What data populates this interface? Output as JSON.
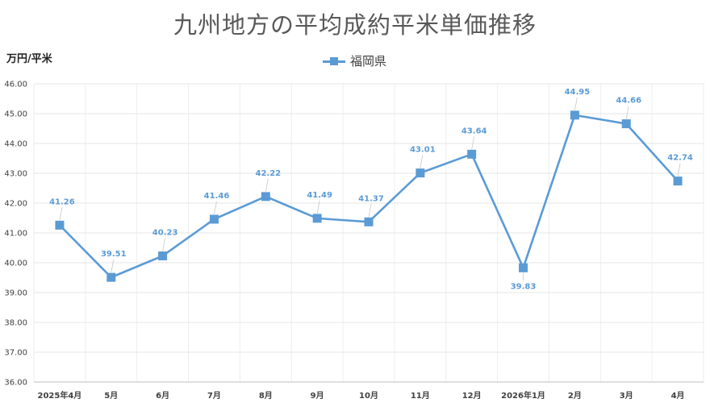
{
  "chart_data": {
    "type": "line",
    "title": "九州地方の平均成約平米単価推移",
    "ylabel": "万円/平米",
    "xlabel": "",
    "categories": [
      "2025年4月",
      "5月",
      "6月",
      "7月",
      "8月",
      "9月",
      "10月",
      "11月",
      "12月",
      "2026年1月",
      "2月",
      "3月",
      "4月"
    ],
    "series": [
      {
        "name": "福岡県",
        "values": [
          41.26,
          39.51,
          40.23,
          41.46,
          42.22,
          41.49,
          41.37,
          43.01,
          43.64,
          39.83,
          44.95,
          44.66,
          42.74
        ]
      }
    ],
    "data_labels": [
      "41.26",
      "39.51",
      "40.23",
      "41.46",
      "42.22",
      "41.49",
      "41.37",
      "43.01",
      "43.64",
      "39.83",
      "44.95",
      "44.66",
      "42.74"
    ],
    "ylim": [
      36,
      46
    ],
    "yticks": [
      "36.00",
      "37.00",
      "38.00",
      "39.00",
      "40.00",
      "41.00",
      "42.00",
      "43.00",
      "44.00",
      "45.00",
      "46.00"
    ],
    "grid": true,
    "legend_position": "top",
    "colors": {
      "series": "#5b9bd5",
      "label": "#5b9bd5",
      "grid": "#e6e6e6"
    }
  }
}
